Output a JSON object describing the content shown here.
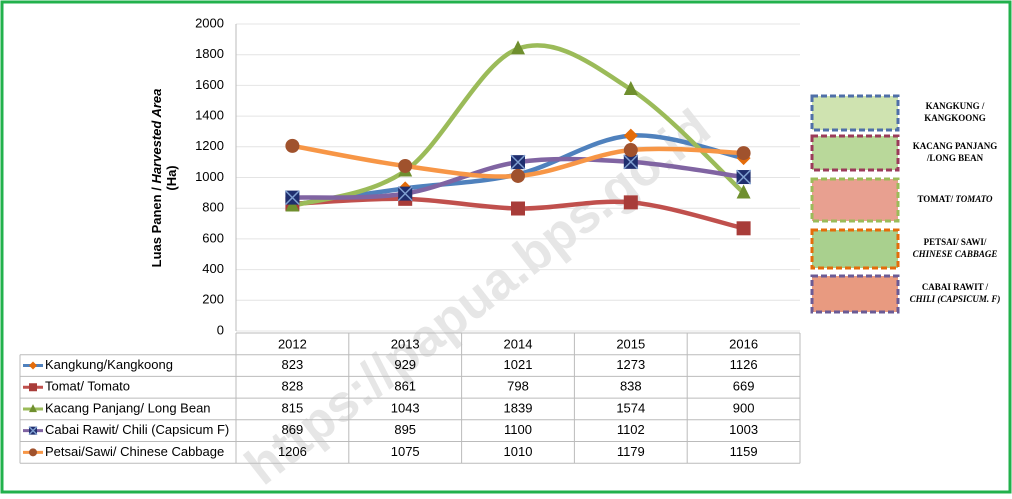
{
  "chart_data": {
    "type": "line",
    "y_label_parts": [
      "Luas Panen / ",
      "Harvested Area",
      "(Ha)"
    ],
    "categories": [
      "2012",
      "2013",
      "2014",
      "2015",
      "2016"
    ],
    "ylim": [
      0,
      2000
    ],
    "yticks": [
      0,
      200,
      400,
      600,
      800,
      1000,
      1200,
      1400,
      1600,
      1800,
      2000
    ],
    "grid": true,
    "smooth": true,
    "series": [
      {
        "name": "Kangkung/Kangkoong",
        "color": "#4f81bd",
        "marker": "diamond",
        "marker_color": "#e46c0a",
        "values": [
          823,
          929,
          1021,
          1273,
          1126
        ]
      },
      {
        "name": "Tomat/ Tomato",
        "color": "#c0504d",
        "marker": "square",
        "marker_color": "#a83c39",
        "values": [
          828,
          861,
          798,
          838,
          669
        ]
      },
      {
        "name": "Kacang Panjang/ Long Bean",
        "color": "#9bbb59",
        "marker": "triangle",
        "marker_color": "#6f8f2e",
        "values": [
          815,
          1043,
          1839,
          1574,
          900
        ]
      },
      {
        "name": "Cabai Rawit/ Chili (Capsicum F)",
        "color": "#8064a2",
        "marker": "xsquare",
        "marker_color": "#1f2e6e",
        "values": [
          869,
          895,
          1100,
          1102,
          1003
        ]
      },
      {
        "name": "Petsai/Sawi/ Chinese Cabbage",
        "color": "#f79646",
        "marker": "circle",
        "marker_color": "#a0522d",
        "values": [
          1206,
          1075,
          1010,
          1179,
          1159
        ]
      }
    ]
  },
  "picture_legend": [
    {
      "lines": [
        [
          "KANGKUNG /"
        ],
        [
          "KANGKOONG"
        ]
      ],
      "border": "#4f6fa8"
    },
    {
      "lines": [
        [
          "KACANG PANJANG"
        ],
        [
          "/LONG BEAN"
        ]
      ],
      "border": "#9b3b5a"
    },
    {
      "lines": [
        [
          "TOMAT/ ",
          "TOMATO"
        ]
      ],
      "border": "#9bbb59"
    },
    {
      "lines": [
        [
          "PETSAI/ SAWI/"
        ],
        [
          "CHINESE CABBAGE"
        ]
      ],
      "border": "#e46c0a"
    },
    {
      "lines": [
        [
          "CABAI RAWIT /"
        ],
        [
          "CHILI (CAPSICUM. F)"
        ]
      ],
      "border": "#6b5b95"
    }
  ],
  "watermark": "https://papua.bps.go.id"
}
